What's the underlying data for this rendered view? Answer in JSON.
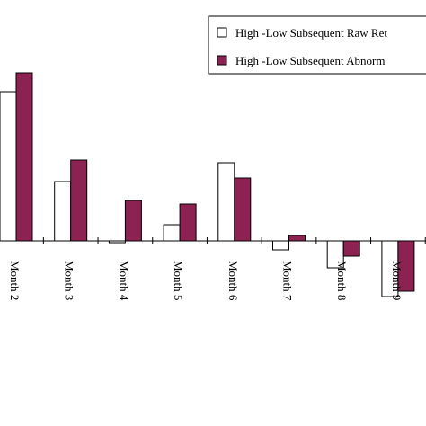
{
  "chart_data": {
    "type": "bar",
    "categories": [
      "Month 2",
      "Month 3",
      "Month 4",
      "Month 5",
      "Month 6",
      "Month 7",
      "Month 8",
      "Month 9"
    ],
    "series": [
      {
        "name": "High -Low Subsequent Raw Ret",
        "color": "#ffffff",
        "values": [
          1.66,
          0.66,
          -0.02,
          0.18,
          0.87,
          -0.1,
          -0.3,
          -0.62
        ]
      },
      {
        "name": "High -Low  Subsequent Abnorm",
        "color": "#8b2252",
        "values": [
          1.87,
          0.9,
          0.45,
          0.41,
          0.7,
          0.06,
          -0.17,
          -0.56
        ]
      }
    ],
    "ylim": [
      -2,
      2.5
    ],
    "legend": "upper right"
  }
}
